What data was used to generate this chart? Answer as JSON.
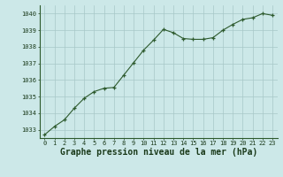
{
  "x": [
    0,
    1,
    2,
    3,
    4,
    5,
    6,
    7,
    8,
    9,
    10,
    11,
    12,
    13,
    14,
    15,
    16,
    17,
    18,
    19,
    20,
    21,
    22,
    23
  ],
  "y": [
    1032.7,
    1033.2,
    1033.6,
    1034.3,
    1034.9,
    1035.3,
    1035.5,
    1035.55,
    1036.3,
    1037.05,
    1037.8,
    1038.4,
    1039.05,
    1038.85,
    1038.5,
    1038.45,
    1038.45,
    1038.55,
    1039.0,
    1039.35,
    1039.65,
    1039.75,
    1040.0,
    1039.9
  ],
  "xlim": [
    -0.5,
    23.5
  ],
  "ylim": [
    1032.5,
    1040.5
  ],
  "yticks": [
    1033,
    1034,
    1035,
    1036,
    1037,
    1038,
    1039,
    1040
  ],
  "xticks": [
    0,
    1,
    2,
    3,
    4,
    5,
    6,
    7,
    8,
    9,
    10,
    11,
    12,
    13,
    14,
    15,
    16,
    17,
    18,
    19,
    20,
    21,
    22,
    23
  ],
  "xlabel": "Graphe pression niveau de la mer (hPa)",
  "line_color": "#2d5a2d",
  "marker_color": "#2d5a2d",
  "bg_color": "#cce8e8",
  "grid_color": "#a8c8c8",
  "text_color": "#1a3a1a",
  "tick_fontsize": 5.0,
  "xlabel_fontsize": 7.0
}
